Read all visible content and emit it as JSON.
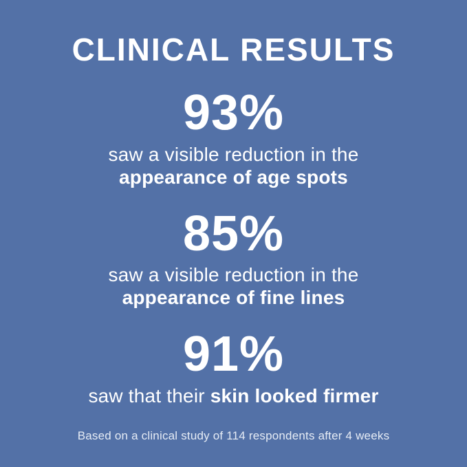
{
  "colors": {
    "background": "#5371A7",
    "text": "#FFFFFF",
    "footnote": "#E6ECF5"
  },
  "title": "CLINICAL RESULTS",
  "stats": [
    {
      "percent": "93%",
      "line1": "saw a visible reduction in the",
      "line2_bold": "appearance of age spots"
    },
    {
      "percent": "85%",
      "line1": "saw a visible reduction in the",
      "line2_bold": "appearance of fine lines"
    },
    {
      "percent": "91%",
      "text_regular": "saw that their ",
      "text_bold": "skin looked firmer"
    }
  ],
  "footnote": "Based on a clinical study of 114 respondents after 4 weeks"
}
